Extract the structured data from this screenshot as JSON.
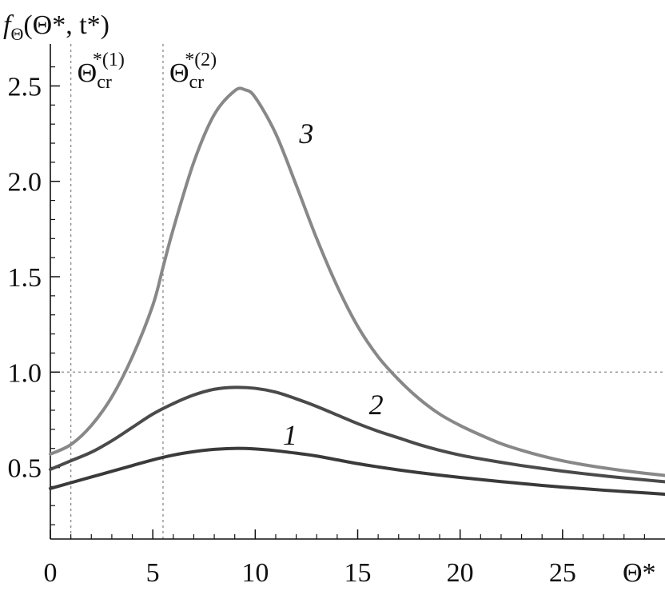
{
  "chart_data": {
    "type": "line",
    "ylabel": {
      "f": "f",
      "sub": "Θ",
      "rest": "(Θ*, t*)"
    },
    "xlabel": "Θ*",
    "x_ticks": [
      0,
      5,
      10,
      15,
      20,
      25
    ],
    "y_ticks": [
      0.5,
      1.0,
      1.5,
      2.0,
      2.5
    ],
    "x_tick_labels": [
      "0",
      "5",
      "10",
      "15",
      "20",
      "25"
    ],
    "y_tick_labels": [
      "0.5",
      "1.0",
      "1.5",
      "2.0",
      "2.5"
    ],
    "xlim": [
      0,
      30
    ],
    "ylim": [
      0.125,
      2.72
    ],
    "reference_lines": {
      "horizontal": [
        1.0
      ],
      "vertical": [
        {
          "x": 1.0,
          "base": "Θ",
          "sub": "cr",
          "sup": "*(1)"
        },
        {
          "x": 5.5,
          "base": "Θ",
          "sub": "cr",
          "sup": "*(2)"
        }
      ]
    },
    "series": [
      {
        "name": "1",
        "color": "#3a3a3a",
        "x": [
          0,
          1,
          2,
          3,
          4,
          5,
          6,
          7,
          8,
          9,
          10,
          11,
          12,
          13,
          14,
          15,
          16,
          17,
          18,
          19,
          20,
          21,
          22,
          23,
          24,
          25,
          26,
          27,
          28,
          29,
          30
        ],
        "y": [
          0.39,
          0.42,
          0.45,
          0.48,
          0.51,
          0.54,
          0.565,
          0.583,
          0.595,
          0.6,
          0.597,
          0.588,
          0.575,
          0.56,
          0.54,
          0.52,
          0.503,
          0.487,
          0.473,
          0.46,
          0.448,
          0.437,
          0.426,
          0.416,
          0.406,
          0.397,
          0.389,
          0.381,
          0.374,
          0.367,
          0.36
        ]
      },
      {
        "name": "2",
        "color": "#4a4a4a",
        "x": [
          0,
          1,
          2,
          3,
          4,
          5,
          6,
          7,
          8,
          9,
          10,
          11,
          12,
          13,
          14,
          15,
          16,
          17,
          18,
          19,
          20,
          21,
          22,
          23,
          24,
          25,
          26,
          27,
          28,
          29,
          30
        ],
        "y": [
          0.49,
          0.535,
          0.58,
          0.64,
          0.71,
          0.78,
          0.835,
          0.88,
          0.91,
          0.92,
          0.915,
          0.895,
          0.86,
          0.82,
          0.775,
          0.73,
          0.69,
          0.655,
          0.62,
          0.59,
          0.565,
          0.545,
          0.527,
          0.51,
          0.495,
          0.481,
          0.468,
          0.456,
          0.445,
          0.435,
          0.425
        ]
      },
      {
        "name": "3",
        "color": "#888888",
        "x": [
          0,
          1,
          2,
          3,
          4,
          5,
          5.5,
          6,
          7,
          8,
          9,
          9.5,
          10,
          11,
          12,
          13,
          14,
          15,
          16,
          17,
          18,
          19,
          20,
          21,
          22,
          23,
          24,
          25,
          26,
          27,
          28,
          29,
          30
        ],
        "y": [
          0.57,
          0.62,
          0.72,
          0.87,
          1.08,
          1.35,
          1.55,
          1.75,
          2.1,
          2.35,
          2.475,
          2.48,
          2.44,
          2.25,
          1.98,
          1.7,
          1.45,
          1.24,
          1.08,
          0.96,
          0.86,
          0.78,
          0.72,
          0.67,
          0.625,
          0.59,
          0.56,
          0.535,
          0.515,
          0.498,
          0.483,
          0.47,
          0.458
        ]
      }
    ],
    "curve_labels": [
      {
        "series": "1",
        "x": 11.7,
        "y": 0.62
      },
      {
        "series": "2",
        "x": 15.9,
        "y": 0.78
      },
      {
        "series": "3",
        "x": 12.5,
        "y": 2.2
      }
    ]
  }
}
